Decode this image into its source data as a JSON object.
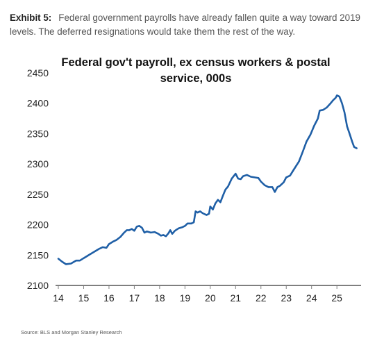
{
  "exhibit": {
    "label": "Exhibit 5:",
    "caption": "Federal government payrolls have already fallen quite a way toward 2019 levels. The deferred resignations would take them the rest of the way."
  },
  "source": "Source: BLS and Morgan Stanley Research",
  "colors": {
    "line": "#1f5fa6",
    "axis": "#7f7f7f"
  },
  "chart_data": {
    "type": "line",
    "title_lines": [
      "Federal gov't payroll, ex census workers & postal",
      "service, 000s"
    ],
    "xlabel": "",
    "ylabel": "",
    "xlim": [
      2014,
      2025.9
    ],
    "ylim": [
      2100,
      2450
    ],
    "xticks": [
      14,
      15,
      16,
      17,
      18,
      19,
      20,
      21,
      22,
      23,
      24,
      25
    ],
    "yticks": [
      2100,
      2150,
      2200,
      2250,
      2300,
      2350,
      2400,
      2450
    ],
    "grid": false,
    "series": [
      {
        "name": "",
        "points": [
          [
            2014.0,
            2144
          ],
          [
            2014.15,
            2139
          ],
          [
            2014.3,
            2135
          ],
          [
            2014.5,
            2136
          ],
          [
            2014.7,
            2141
          ],
          [
            2014.85,
            2141
          ],
          [
            2015.0,
            2145
          ],
          [
            2015.2,
            2150
          ],
          [
            2015.4,
            2155
          ],
          [
            2015.6,
            2160
          ],
          [
            2015.75,
            2163
          ],
          [
            2015.9,
            2162
          ],
          [
            2016.0,
            2168
          ],
          [
            2016.15,
            2172
          ],
          [
            2016.3,
            2175
          ],
          [
            2016.45,
            2180
          ],
          [
            2016.6,
            2187
          ],
          [
            2016.7,
            2191
          ],
          [
            2016.8,
            2191
          ],
          [
            2016.9,
            2193
          ],
          [
            2017.0,
            2190
          ],
          [
            2017.1,
            2197
          ],
          [
            2017.2,
            2198
          ],
          [
            2017.3,
            2195
          ],
          [
            2017.4,
            2187
          ],
          [
            2017.5,
            2189
          ],
          [
            2017.65,
            2187
          ],
          [
            2017.8,
            2188
          ],
          [
            2017.95,
            2185
          ],
          [
            2018.05,
            2182
          ],
          [
            2018.15,
            2183
          ],
          [
            2018.25,
            2181
          ],
          [
            2018.35,
            2186
          ],
          [
            2018.42,
            2191
          ],
          [
            2018.5,
            2185
          ],
          [
            2018.6,
            2190
          ],
          [
            2018.75,
            2194
          ],
          [
            2018.9,
            2196
          ],
          [
            2019.0,
            2198
          ],
          [
            2019.1,
            2202
          ],
          [
            2019.25,
            2202
          ],
          [
            2019.35,
            2204
          ],
          [
            2019.42,
            2222
          ],
          [
            2019.5,
            2220
          ],
          [
            2019.6,
            2222
          ],
          [
            2019.7,
            2219
          ],
          [
            2019.85,
            2216
          ],
          [
            2019.95,
            2218
          ],
          [
            2020.0,
            2230
          ],
          [
            2020.1,
            2225
          ],
          [
            2020.2,
            2235
          ],
          [
            2020.3,
            2241
          ],
          [
            2020.4,
            2237
          ],
          [
            2020.5,
            2248
          ],
          [
            2020.6,
            2258
          ],
          [
            2020.7,
            2263
          ],
          [
            2020.85,
            2276
          ],
          [
            2021.0,
            2284
          ],
          [
            2021.1,
            2276
          ],
          [
            2021.2,
            2275
          ],
          [
            2021.3,
            2280
          ],
          [
            2021.45,
            2282
          ],
          [
            2021.6,
            2279
          ],
          [
            2021.75,
            2278
          ],
          [
            2021.9,
            2277
          ],
          [
            2022.0,
            2271
          ],
          [
            2022.15,
            2265
          ],
          [
            2022.3,
            2262
          ],
          [
            2022.45,
            2262
          ],
          [
            2022.55,
            2254
          ],
          [
            2022.65,
            2262
          ],
          [
            2022.75,
            2264
          ],
          [
            2022.9,
            2270
          ],
          [
            2023.0,
            2278
          ],
          [
            2023.15,
            2281
          ],
          [
            2023.3,
            2291
          ],
          [
            2023.5,
            2304
          ],
          [
            2023.65,
            2320
          ],
          [
            2023.8,
            2337
          ],
          [
            2023.95,
            2348
          ],
          [
            2024.1,
            2363
          ],
          [
            2024.25,
            2375
          ],
          [
            2024.32,
            2388
          ],
          [
            2024.45,
            2389
          ],
          [
            2024.6,
            2393
          ],
          [
            2024.75,
            2400
          ],
          [
            2024.85,
            2405
          ],
          [
            2024.95,
            2409
          ],
          [
            2025.0,
            2413
          ],
          [
            2025.1,
            2411
          ],
          [
            2025.2,
            2400
          ],
          [
            2025.3,
            2385
          ],
          [
            2025.4,
            2362
          ],
          [
            2025.5,
            2350
          ],
          [
            2025.6,
            2337
          ],
          [
            2025.68,
            2328
          ],
          [
            2025.78,
            2326
          ]
        ]
      }
    ]
  }
}
